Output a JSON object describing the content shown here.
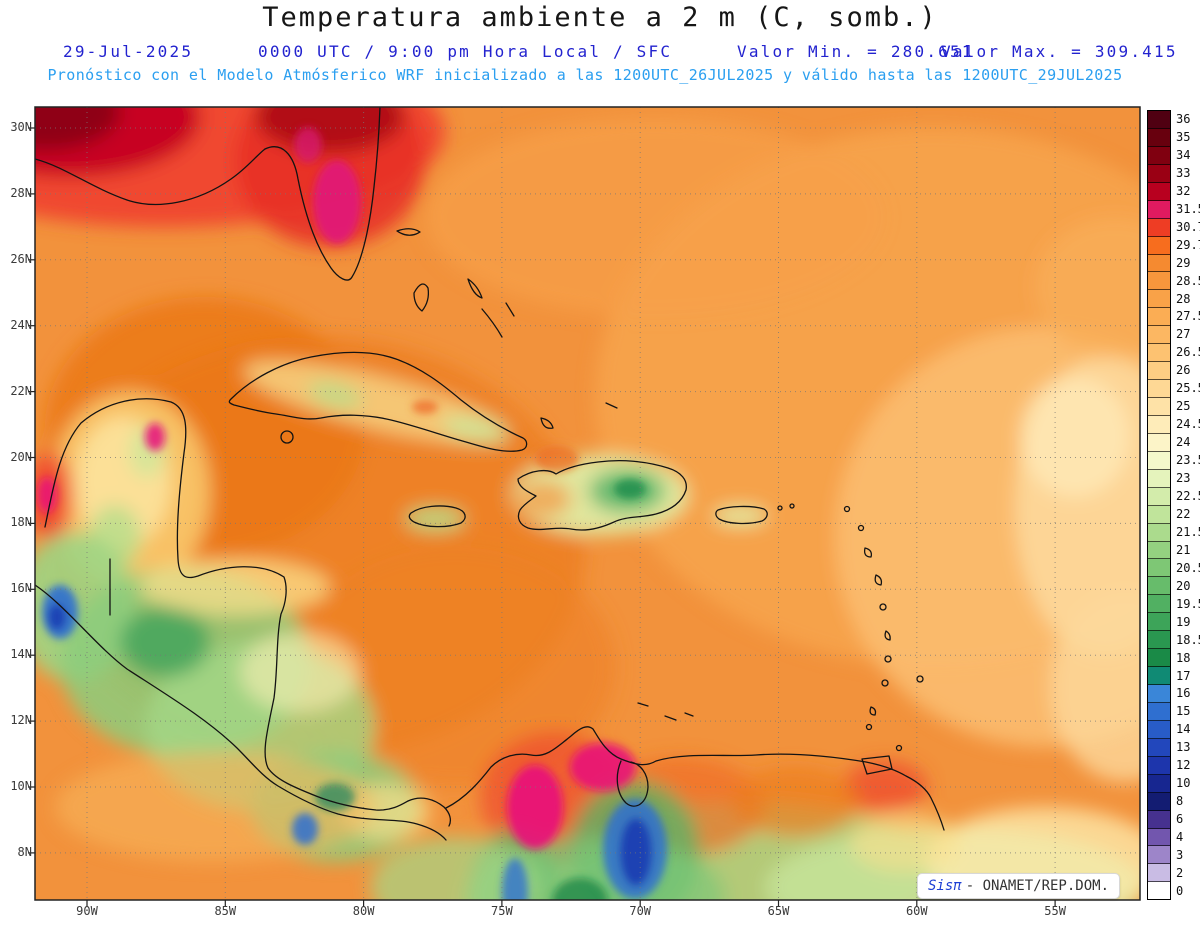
{
  "title": "Temperatura ambiente a 2 m (C, somb.)",
  "header": {
    "date": "29-Jul-2025",
    "time": "0000 UTC / 9:00 pm Hora Local / SFC",
    "valor_min": "Valor Min. = 280.651",
    "valor_max": "Valor Max. = 309.415",
    "model_line": "Pronóstico con el Modelo Atmósferico WRF inicializado a las 1200UTC_26JUL2025 y válido hasta las 1200UTC_29JUL2025"
  },
  "axes": {
    "lat_ticks": [
      "30N",
      "28N",
      "26N",
      "24N",
      "22N",
      "20N",
      "18N",
      "16N",
      "14N",
      "12N",
      "10N",
      "8N"
    ],
    "lon_ticks": [
      "90W",
      "85W",
      "80W",
      "75W",
      "70W",
      "65W",
      "60W",
      "55W"
    ]
  },
  "colorbar": {
    "entries": [
      {
        "label": "36",
        "color": "#500012"
      },
      {
        "label": "35",
        "color": "#68000e"
      },
      {
        "label": "34",
        "color": "#800010"
      },
      {
        "label": "33",
        "color": "#9a0014"
      },
      {
        "label": "32",
        "color": "#b8001f"
      },
      {
        "label": "31.5",
        "color": "#e01a60"
      },
      {
        "label": "30.7",
        "color": "#ee3d24"
      },
      {
        "label": "29.7",
        "color": "#f76d1e"
      },
      {
        "label": "29",
        "color": "#f58a30"
      },
      {
        "label": "28.5",
        "color": "#f7963c"
      },
      {
        "label": "28",
        "color": "#f9a248"
      },
      {
        "label": "27.5",
        "color": "#fbad54"
      },
      {
        "label": "27",
        "color": "#fcb762"
      },
      {
        "label": "26.5",
        "color": "#fdc271"
      },
      {
        "label": "26",
        "color": "#fdcd83"
      },
      {
        "label": "25.5",
        "color": "#fed895"
      },
      {
        "label": "25",
        "color": "#fee2a7"
      },
      {
        "label": "24.5",
        "color": "#feecb9"
      },
      {
        "label": "24",
        "color": "#fcf4c8"
      },
      {
        "label": "23.5",
        "color": "#f4f8cb"
      },
      {
        "label": "23",
        "color": "#e5f3bc"
      },
      {
        "label": "22.5",
        "color": "#d3ecab"
      },
      {
        "label": "22",
        "color": "#c0e49b"
      },
      {
        "label": "21.5",
        "color": "#abdb8d"
      },
      {
        "label": "21",
        "color": "#94d180"
      },
      {
        "label": "20.5",
        "color": "#7ec775"
      },
      {
        "label": "20",
        "color": "#67bc6b"
      },
      {
        "label": "19.5",
        "color": "#51b062"
      },
      {
        "label": "19",
        "color": "#3da459"
      },
      {
        "label": "18.5",
        "color": "#2a9750"
      },
      {
        "label": "18",
        "color": "#1a8a47"
      },
      {
        "label": "17",
        "color": "#108a74"
      },
      {
        "label": "16",
        "color": "#3a86d8"
      },
      {
        "label": "15",
        "color": "#2f6fd0"
      },
      {
        "label": "14",
        "color": "#285cc8"
      },
      {
        "label": "13",
        "color": "#2247bc"
      },
      {
        "label": "12",
        "color": "#1d35ac"
      },
      {
        "label": "10",
        "color": "#172690"
      },
      {
        "label": "8",
        "color": "#131c72"
      },
      {
        "label": "6",
        "color": "#46318f"
      },
      {
        "label": "4",
        "color": "#7256ae"
      },
      {
        "label": "3",
        "color": "#9d85c9"
      },
      {
        "label": "2",
        "color": "#c9bce4"
      },
      {
        "label": "0",
        "color": "#ffffff"
      }
    ]
  },
  "watermark": {
    "brand": "Sisπ",
    "text": "- ONAMET/REP.DOM."
  }
}
